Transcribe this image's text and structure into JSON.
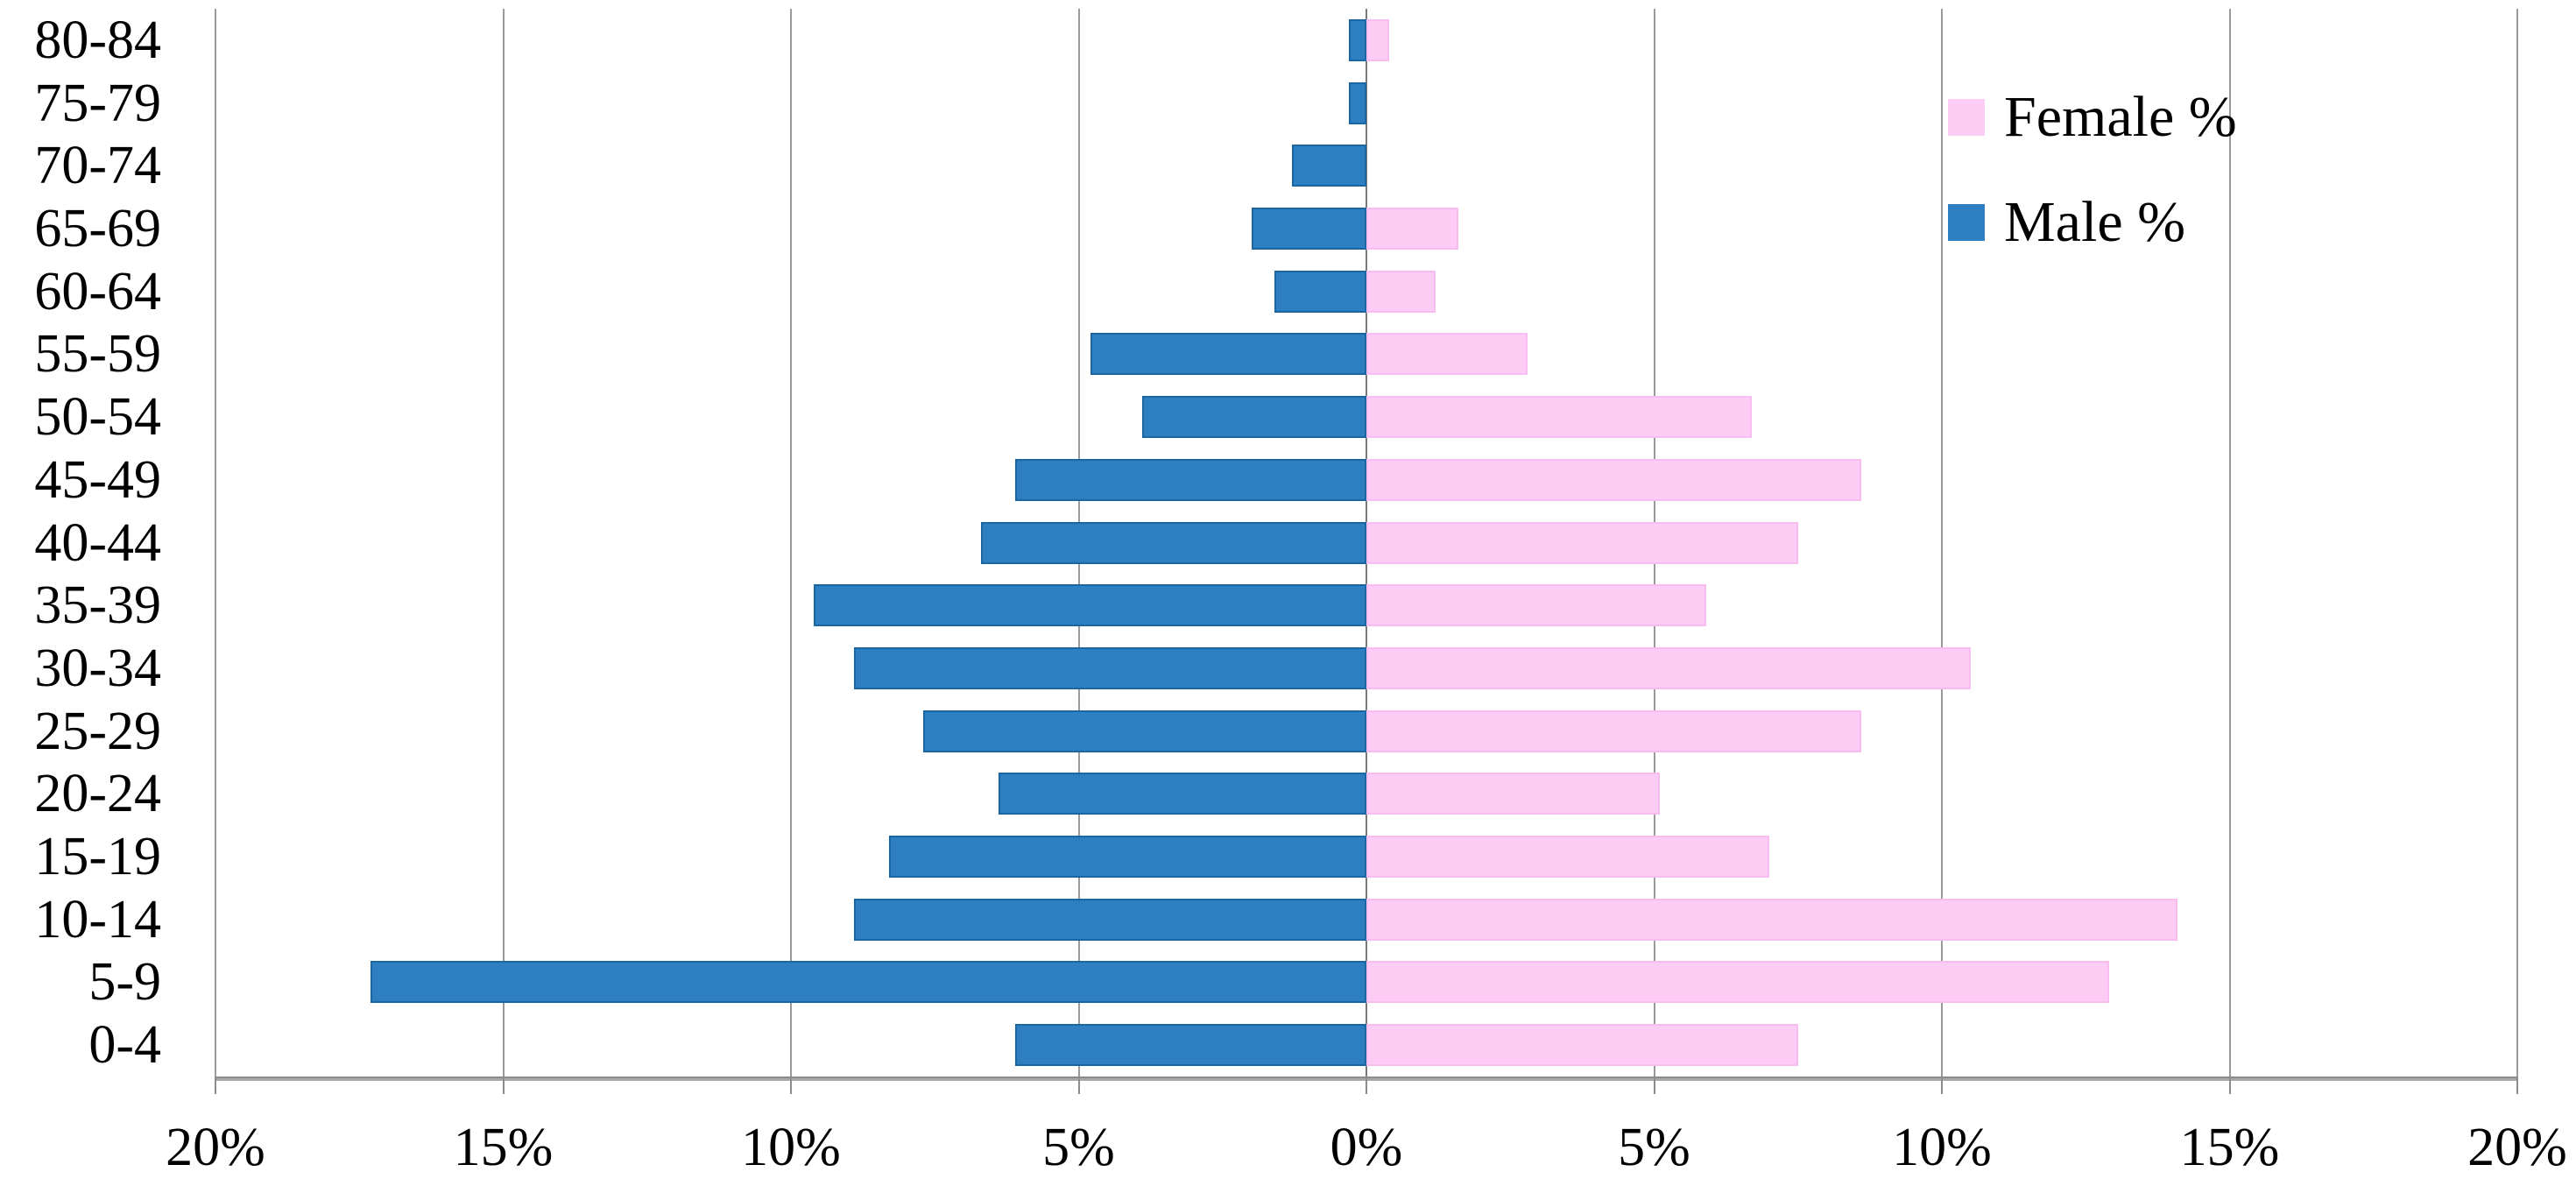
{
  "chart_data": {
    "type": "bar",
    "variant": "population-pyramid",
    "title": "",
    "xlabel": "",
    "ylabel": "",
    "age_groups_top_to_bottom": [
      "80-84",
      "75-79",
      "70-74",
      "65-69",
      "60-64",
      "55-59",
      "50-54",
      "45-49",
      "40-44",
      "35-39",
      "30-34",
      "25-29",
      "20-24",
      "15-19",
      "10-14",
      "5-9",
      "0-4"
    ],
    "series": [
      {
        "name": "Female %",
        "side": "right",
        "color": "#fdccf5",
        "values": [
          0.4,
          0,
          0,
          1.6,
          1.2,
          2.8,
          6.7,
          8.6,
          7.5,
          5.9,
          10.5,
          8.6,
          5.1,
          7.0,
          14.1,
          12.9,
          7.5
        ]
      },
      {
        "name": "Male %",
        "side": "left",
        "color": "#2d7fc1",
        "values": [
          0.3,
          0.3,
          1.3,
          2.0,
          1.6,
          4.8,
          3.9,
          6.1,
          6.7,
          9.6,
          8.9,
          7.7,
          6.4,
          8.3,
          8.9,
          17.3,
          6.1
        ]
      }
    ],
    "x_axis": {
      "range": [
        -20,
        20
      ],
      "tick_values": [
        -20,
        -15,
        -10,
        -5,
        0,
        5,
        10,
        15,
        20
      ],
      "tick_labels": [
        "20%",
        "15%",
        "10%",
        "5%",
        "0%",
        "5%",
        "10%",
        "15%",
        "20%"
      ],
      "unit": "percent"
    },
    "grid": true,
    "legend_position": "top-right"
  },
  "legend": {
    "items": [
      {
        "label": "Female %",
        "color": "#fdccf5"
      },
      {
        "label": "Male %",
        "color": "#2d7fc1"
      }
    ]
  },
  "colors": {
    "male_fill": "#2d7fc1",
    "male_border": "#1b66a0",
    "female_fill": "#fdccf5",
    "female_border": "#f8bcf0",
    "gridline": "#9a9a9a",
    "center_line": "#7a7a7a",
    "axis_line": "#8c8c8c",
    "text": "#000000",
    "background": "#ffffff"
  }
}
